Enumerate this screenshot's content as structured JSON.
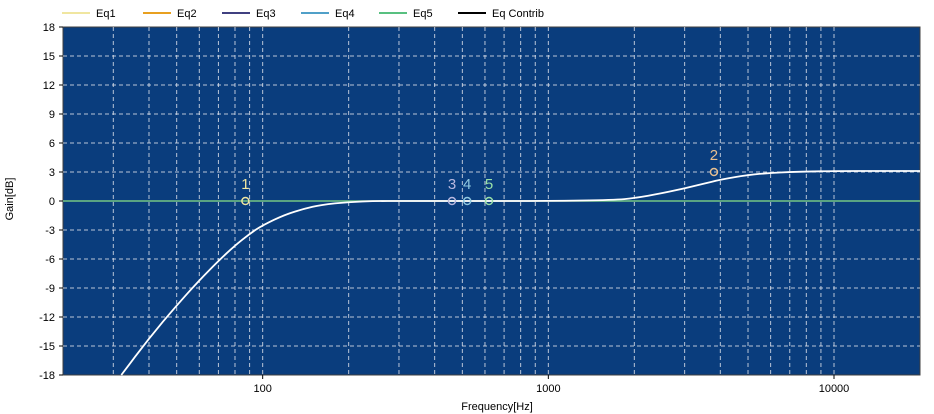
{
  "chart_data": {
    "type": "line",
    "xlabel": "Frequency[Hz]",
    "ylabel": "Gain[dB]",
    "xscale": "log",
    "xlim": [
      20,
      20000
    ],
    "ylim": [
      -18,
      18
    ],
    "x_ticks": [
      {
        "value": 100,
        "label": "100"
      },
      {
        "value": 1000,
        "label": "1000"
      },
      {
        "value": 10000,
        "label": "10000"
      }
    ],
    "y_ticks": [
      18,
      15,
      12,
      9,
      6,
      3,
      0,
      -3,
      -6,
      -9,
      -12,
      -15,
      -18
    ],
    "grid": true,
    "legend_position": "top",
    "series": [
      {
        "name": "Eq1",
        "color": "#f0e6a0"
      },
      {
        "name": "Eq2",
        "color": "#e8a020"
      },
      {
        "name": "Eq3",
        "color": "#404080"
      },
      {
        "name": "Eq4",
        "color": "#50a0c8"
      },
      {
        "name": "Eq5",
        "color": "#58c080"
      },
      {
        "name": "Eq Contrib",
        "color": "#ffffff",
        "x": [
          32,
          40,
          50,
          60,
          70,
          80,
          90,
          100,
          120,
          140,
          160,
          200,
          250,
          300,
          500,
          1000,
          1700,
          2000,
          2500,
          3000,
          3500,
          4000,
          5000,
          6000,
          7000,
          8000,
          10000,
          15000,
          20000
        ],
        "y": [
          -18,
          -14.2,
          -10.8,
          -8.2,
          -6.2,
          -4.6,
          -3.4,
          -2.5,
          -1.4,
          -0.8,
          -0.4,
          -0.1,
          0,
          0,
          0,
          0,
          0.1,
          0.3,
          0.8,
          1.3,
          1.8,
          2.2,
          2.7,
          2.9,
          3.0,
          3.05,
          3.1,
          3.1,
          3.1
        ]
      }
    ],
    "band_points": [
      {
        "label": "1",
        "freq": 87,
        "gain": 0,
        "color": "#f0e6a0"
      },
      {
        "label": "2",
        "freq": 3800,
        "gain": 3,
        "color": "#e8c090"
      },
      {
        "label": "3",
        "freq": 460,
        "gain": 0,
        "color": "#b8b8e0"
      },
      {
        "label": "4",
        "freq": 520,
        "gain": 0,
        "color": "#90c8e0"
      },
      {
        "label": "5",
        "freq": 620,
        "gain": 0,
        "color": "#98e0a8"
      }
    ]
  }
}
